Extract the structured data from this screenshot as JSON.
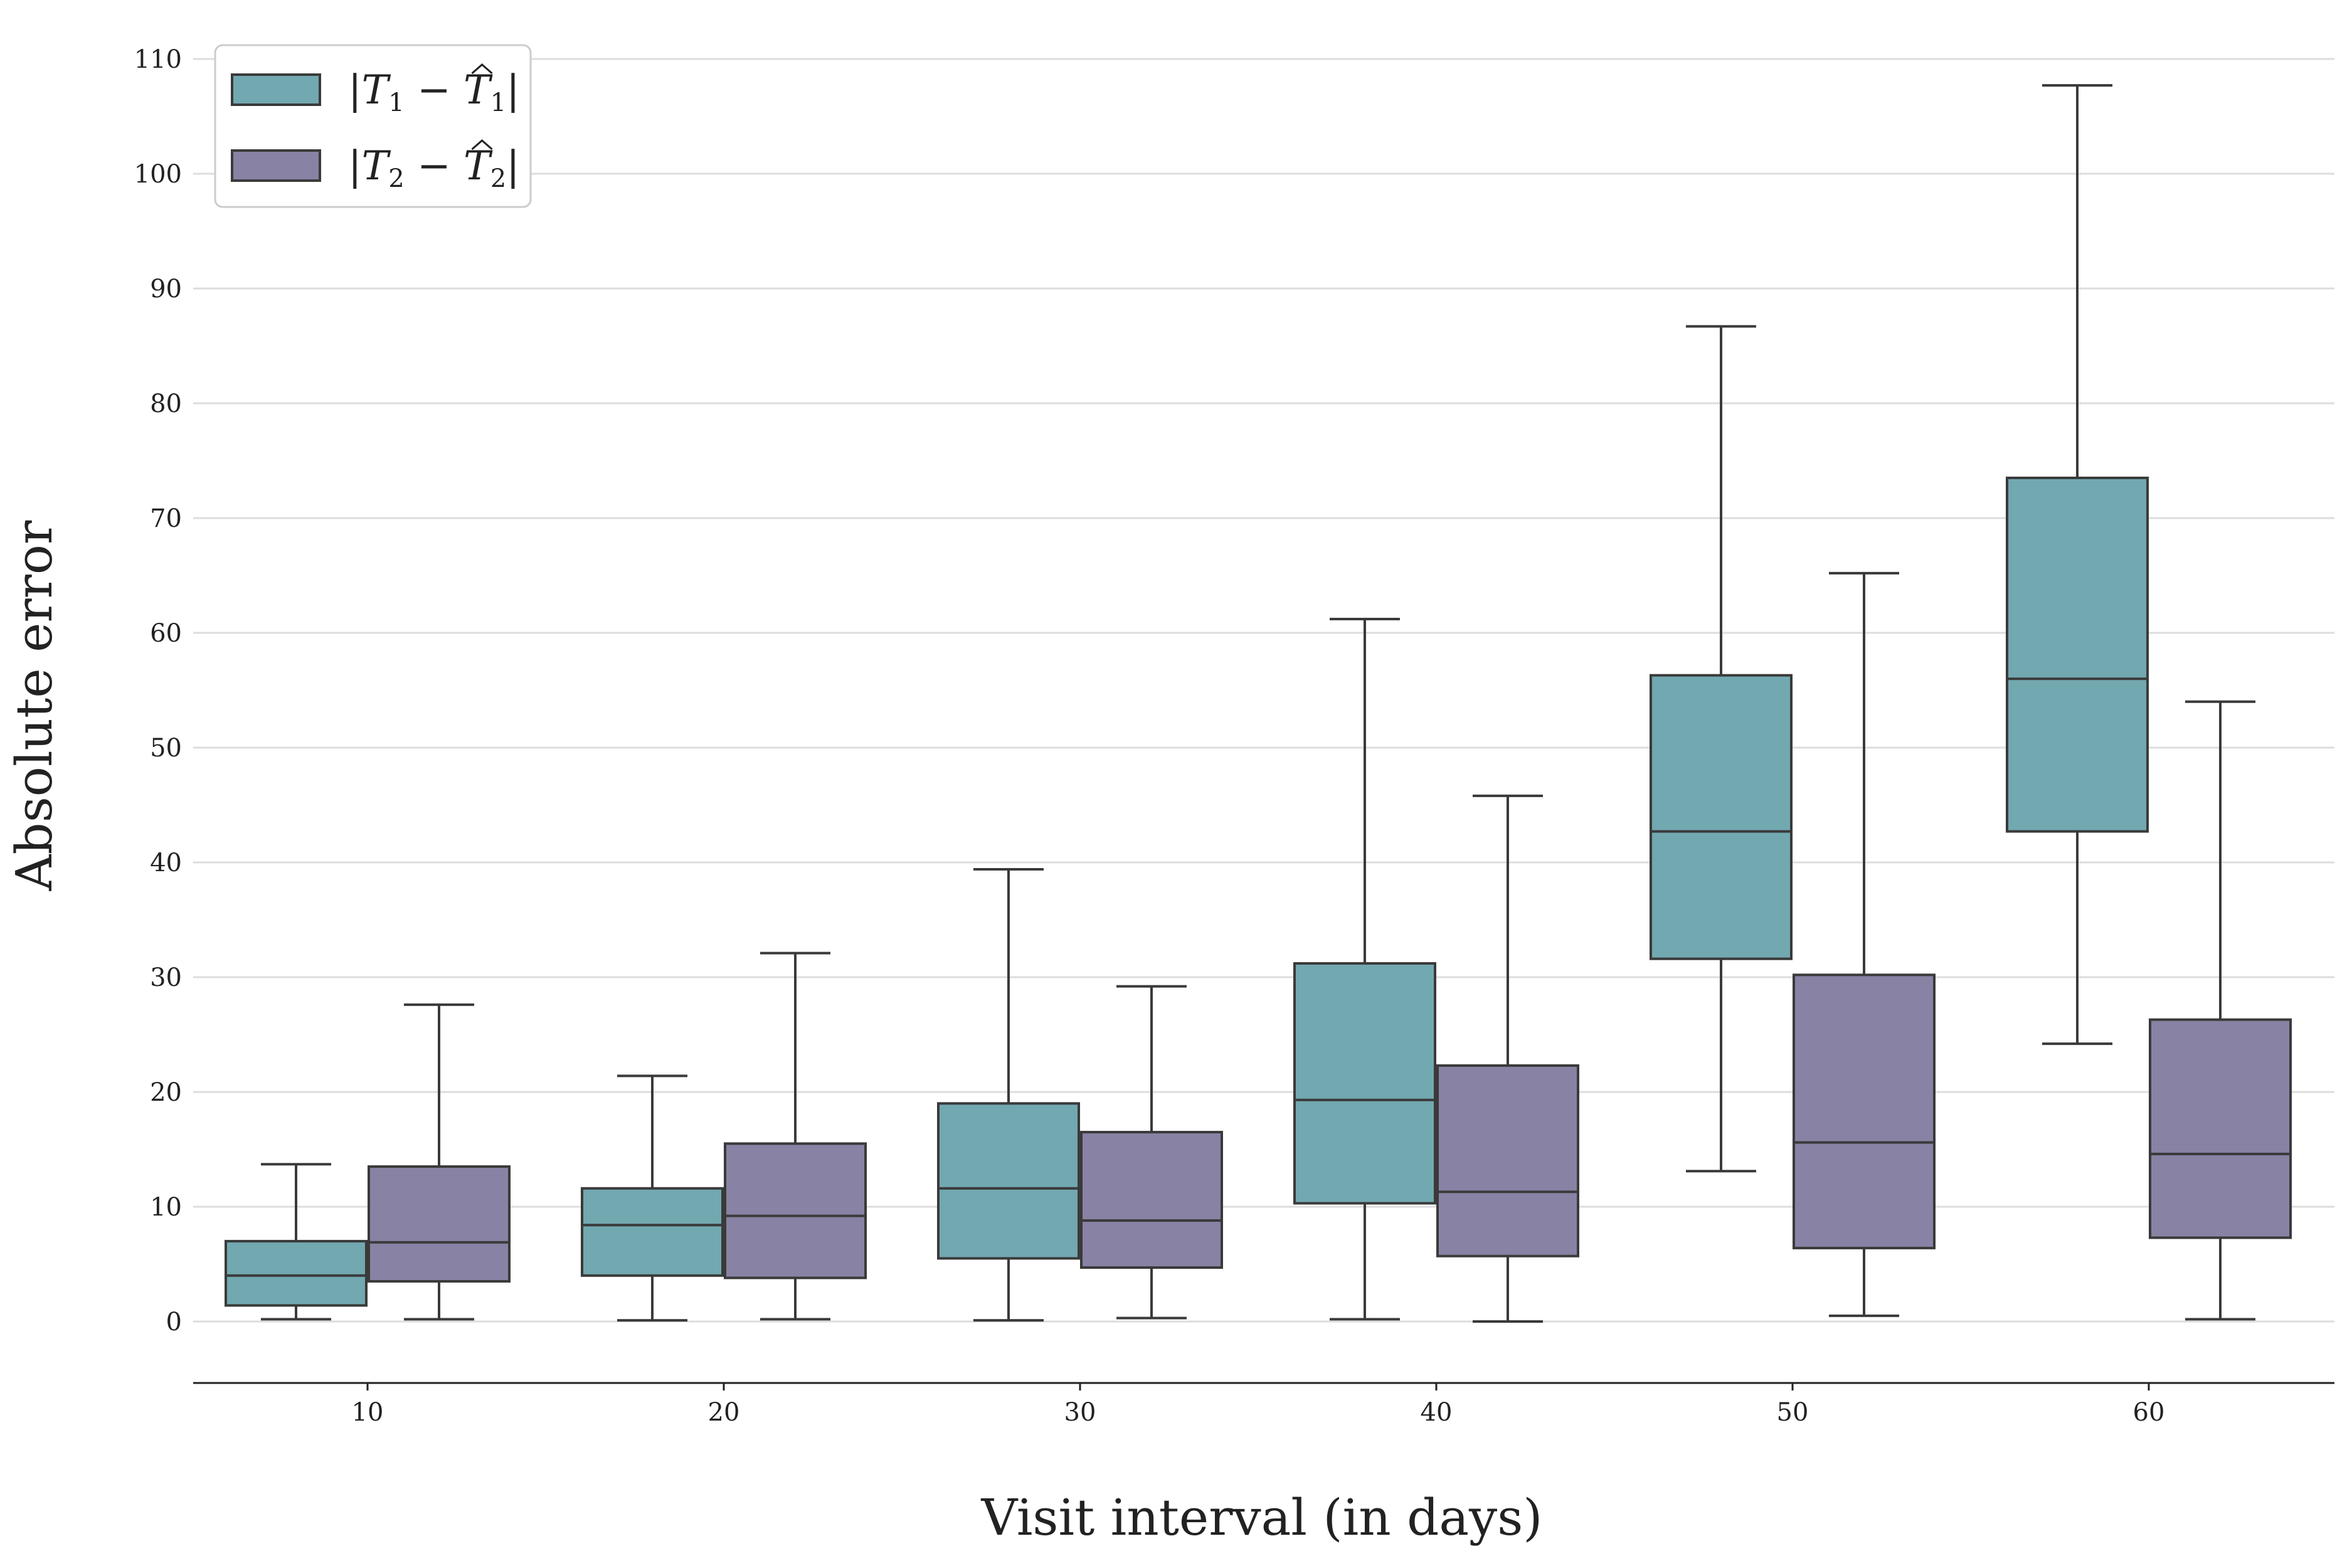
{
  "chart_data": {
    "type": "box",
    "xlabel": "Visit interval (in days)",
    "ylabel": "Absolute error",
    "categories": [
      "10",
      "20",
      "30",
      "40",
      "50",
      "60"
    ],
    "yticks": [
      0,
      10,
      20,
      30,
      40,
      50,
      60,
      70,
      80,
      90,
      100,
      110
    ],
    "ylim": [
      -5,
      111
    ],
    "grid": true,
    "legend_position": "top-left",
    "series": [
      {
        "name": "|T1 − T̂1|",
        "color": "#72a8b0",
        "boxes": [
          {
            "whislo": 0.2,
            "q1": 1.4,
            "med": 4.0,
            "q3": 7.0,
            "whishi": 13.7
          },
          {
            "whislo": 0.1,
            "q1": 4.0,
            "med": 8.4,
            "q3": 11.6,
            "whishi": 21.4
          },
          {
            "whislo": 0.1,
            "q1": 5.5,
            "med": 11.6,
            "q3": 19.0,
            "whishi": 39.4
          },
          {
            "whislo": 0.2,
            "q1": 10.3,
            "med": 19.3,
            "q3": 31.2,
            "whishi": 61.2
          },
          {
            "whislo": 13.1,
            "q1": 31.6,
            "med": 42.7,
            "q3": 56.3,
            "whishi": 86.7
          },
          {
            "whislo": 24.2,
            "q1": 42.7,
            "med": 56.0,
            "q3": 73.5,
            "whishi": 107.7
          }
        ]
      },
      {
        "name": "|T2 − T̂2|",
        "color": "#8882a4",
        "boxes": [
          {
            "whislo": 0.2,
            "q1": 3.5,
            "med": 6.9,
            "q3": 13.5,
            "whishi": 27.6
          },
          {
            "whislo": 0.2,
            "q1": 3.8,
            "med": 9.2,
            "q3": 15.5,
            "whishi": 32.1
          },
          {
            "whislo": 0.3,
            "q1": 4.7,
            "med": 8.8,
            "q3": 16.5,
            "whishi": 29.2
          },
          {
            "whislo": 0.0,
            "q1": 5.7,
            "med": 11.3,
            "q3": 22.3,
            "whishi": 45.8
          },
          {
            "whislo": 0.5,
            "q1": 6.4,
            "med": 15.6,
            "q3": 30.2,
            "whishi": 65.2
          },
          {
            "whislo": 0.2,
            "q1": 7.3,
            "med": 14.6,
            "q3": 26.3,
            "whishi": 54.0
          }
        ]
      }
    ]
  },
  "legend": {
    "items": [
      {
        "var": "T",
        "sub": "1",
        "color": "#72a8b0"
      },
      {
        "var": "T",
        "sub": "2",
        "color": "#8882a4"
      }
    ]
  },
  "colors": {
    "edge": "#3a3a3a",
    "grid": "#dddddd"
  }
}
